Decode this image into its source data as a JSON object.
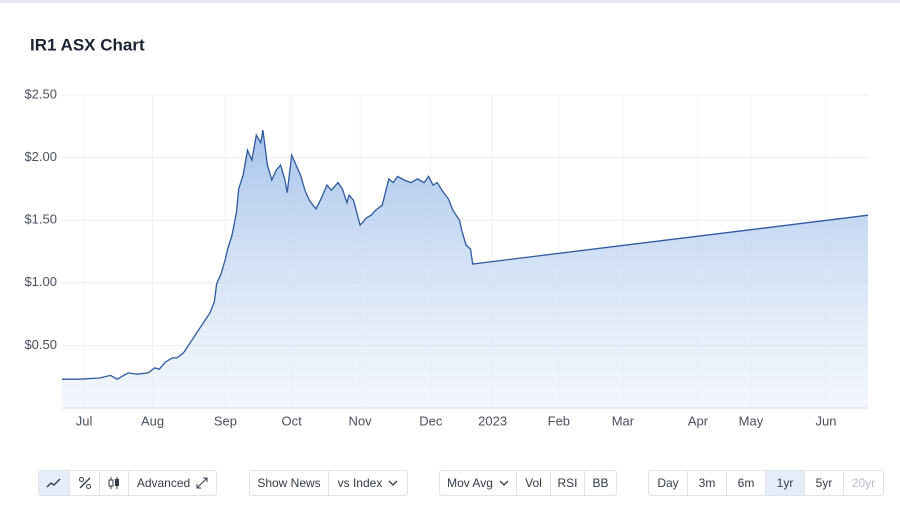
{
  "chart_data": {
    "type": "line",
    "title": "IR1 ASX Chart",
    "x": [
      0,
      8,
      17,
      22,
      25,
      30,
      34,
      39,
      42,
      44,
      47,
      50,
      52,
      55,
      58,
      61,
      64,
      67,
      69,
      70,
      72,
      74,
      75,
      77,
      79,
      80,
      82,
      84,
      86,
      88,
      90,
      91,
      93,
      95,
      97,
      99,
      101,
      102,
      104,
      106,
      108,
      110,
      112,
      115,
      117,
      120,
      122,
      125,
      127,
      129,
      130,
      132,
      135,
      138,
      140,
      142,
      145,
      148,
      150,
      152,
      155,
      158,
      161,
      164,
      166,
      168,
      170,
      172,
      175,
      177,
      180,
      181,
      183,
      185,
      186,
      365
    ],
    "values": [
      0.23,
      0.23,
      0.24,
      0.26,
      0.23,
      0.28,
      0.27,
      0.28,
      0.32,
      0.31,
      0.37,
      0.4,
      0.4,
      0.44,
      0.52,
      0.6,
      0.68,
      0.76,
      0.85,
      0.99,
      1.07,
      1.19,
      1.27,
      1.38,
      1.56,
      1.75,
      1.86,
      2.06,
      1.98,
      2.18,
      2.12,
      2.22,
      1.94,
      1.82,
      1.9,
      1.94,
      1.82,
      1.72,
      2.02,
      1.94,
      1.86,
      1.74,
      1.66,
      1.59,
      1.66,
      1.78,
      1.74,
      1.8,
      1.75,
      1.64,
      1.7,
      1.66,
      1.46,
      1.52,
      1.54,
      1.58,
      1.62,
      1.83,
      1.8,
      1.85,
      1.82,
      1.8,
      1.83,
      1.8,
      1.85,
      1.78,
      1.8,
      1.74,
      1.67,
      1.58,
      1.5,
      1.42,
      1.3,
      1.27,
      1.15,
      1.54
    ],
    "color": "#2f5a9e",
    "xlim": [
      0,
      365
    ],
    "xticks": [
      {
        "value": 10,
        "label": "Jul"
      },
      {
        "value": 41,
        "label": "Aug"
      },
      {
        "value": 74,
        "label": "Sep"
      },
      {
        "value": 104,
        "label": "Oct"
      },
      {
        "value": 135,
        "label": "Nov"
      },
      {
        "value": 167,
        "label": "Dec"
      },
      {
        "value": 195,
        "label": "2023"
      },
      {
        "value": 225,
        "label": "Feb"
      },
      {
        "value": 254,
        "label": "Mar"
      },
      {
        "value": 288,
        "label": "Apr"
      },
      {
        "value": 312,
        "label": "May"
      },
      {
        "value": 346,
        "label": "Jun"
      }
    ],
    "ylim": [
      0,
      2.5
    ],
    "yticks": [
      {
        "value": 0.5,
        "label": "$0.50"
      },
      {
        "value": 1,
        "label": "$1.00"
      },
      {
        "value": 1.5,
        "label": "$1.50"
      },
      {
        "value": 2,
        "label": "$2.00"
      },
      {
        "value": 2.5,
        "label": "$2.50"
      }
    ],
    "grid": true
  },
  "controls": {
    "advanced": "Advanced",
    "show_news": "Show News",
    "vs_index": "vs Index",
    "mov_avg": "Mov Avg",
    "indicators": [
      "Vol",
      "RSI",
      "BB"
    ],
    "periods": [
      "Day",
      "3m",
      "6m",
      "1yr",
      "5yr",
      "20yr"
    ]
  }
}
